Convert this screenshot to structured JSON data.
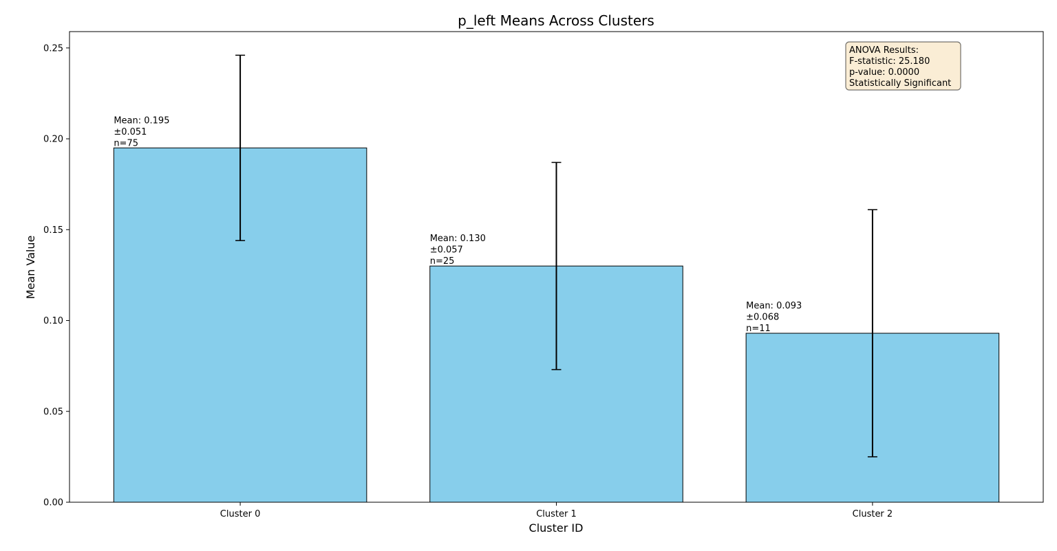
{
  "chart_data": {
    "type": "bar",
    "title": "p_left Means Across Clusters",
    "xlabel": "Cluster ID",
    "ylabel": "Mean Value",
    "ylim": [
      0,
      0.259
    ],
    "yticks": [
      "0.00",
      "0.05",
      "0.10",
      "0.15",
      "0.20",
      "0.25"
    ],
    "ytick_values": [
      0,
      0.05,
      0.1,
      0.15,
      0.2,
      0.25
    ],
    "categories": [
      "Cluster 0",
      "Cluster 1",
      "Cluster 2"
    ],
    "values": [
      0.195,
      0.13,
      0.093
    ],
    "errors": [
      0.051,
      0.057,
      0.068
    ],
    "bar_labels": [
      [
        "Mean: 0.195",
        "±0.051",
        "n=75"
      ],
      [
        "Mean: 0.130",
        "±0.057",
        "n=25"
      ],
      [
        "Mean: 0.093",
        "±0.068",
        "n=11"
      ]
    ],
    "bar_color": "#87CEEB",
    "annotation": {
      "lines": [
        "ANOVA Results:",
        "F-statistic: 25.180",
        "p-value: 0.0000",
        "Statistically Significant"
      ],
      "background": "#F5DEB3",
      "placement": "top-right"
    },
    "grid": false
  }
}
